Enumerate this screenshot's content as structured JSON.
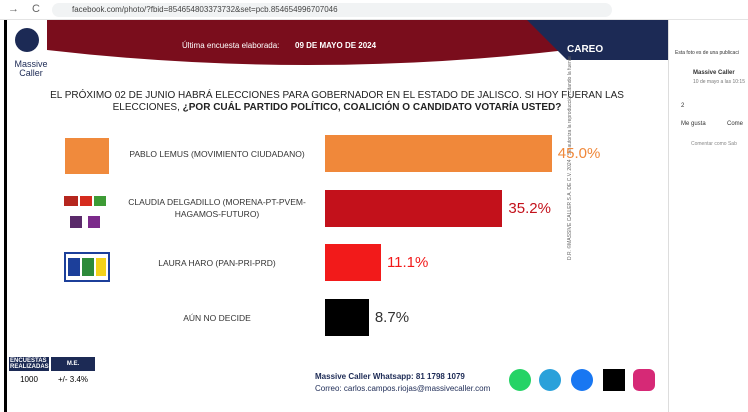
{
  "browser": {
    "url": "facebook.com/photo/?fbid=854654803373732&set=pcb.854654996707046"
  },
  "photo": {
    "brand": "Massive Caller",
    "survey_label": "Última encuesta elaborada:",
    "survey_date": "09 DE MAYO DE 2024",
    "section": "CAREO",
    "question_plain": "EL PRÓXIMO 02 DE JUNIO HABRÁ ELECCIONES PARA GOBERNADOR EN EL ESTADO DE JALISCO. SI HOY FUERAN LAS ELECCIONES,",
    "question_bold": "¿POR CUÁL PARTIDO POLÍTICO, COALICIÓN O CANDIDATO VOTARÍA USTED?",
    "table": {
      "headers": [
        "ENCUESTAS REALIZADAS",
        "M.E."
      ],
      "row": [
        "1000",
        "+/- 3.4%"
      ]
    },
    "contact_whatsapp": "Massive Caller Whatsapp: 81 1798 1079",
    "contact_mail": "Correo: carlos.campos.riojas@massivecaller.com",
    "copyright": "D.R. ©MASSIVE CALLER S.A. DE C.V. 2024",
    "reproduction": "Se autoriza la reproducción citando la fuente"
  },
  "chart_data": {
    "type": "bar",
    "orientation": "horizontal",
    "categories": [
      "PABLO LEMUS (MOVIMIENTO CIUDADANO)",
      "CLAUDIA DELGADILLO (MORENA-PT-PVEM-HAGAMOS-FUTURO)",
      "LAURA HARO (PAN-PRI-PRD)",
      "AÚN NO DECIDE"
    ],
    "values": [
      45.0,
      35.2,
      11.1,
      8.7
    ],
    "value_labels": [
      "45.0%",
      "35.2%",
      "11.1%",
      "8.7%"
    ],
    "colors": [
      "#f0883a",
      "#c3111b",
      "#f21a1a",
      "#000000"
    ]
  },
  "sidebar": {
    "post_note": "Esta foto es de una publicaci",
    "author": "Massive Caller",
    "time": "10 de mayo a las 10:15",
    "reactions": "2",
    "like": "Me gusta",
    "comment": "Come",
    "comment_as": "Comentar como Sab"
  }
}
